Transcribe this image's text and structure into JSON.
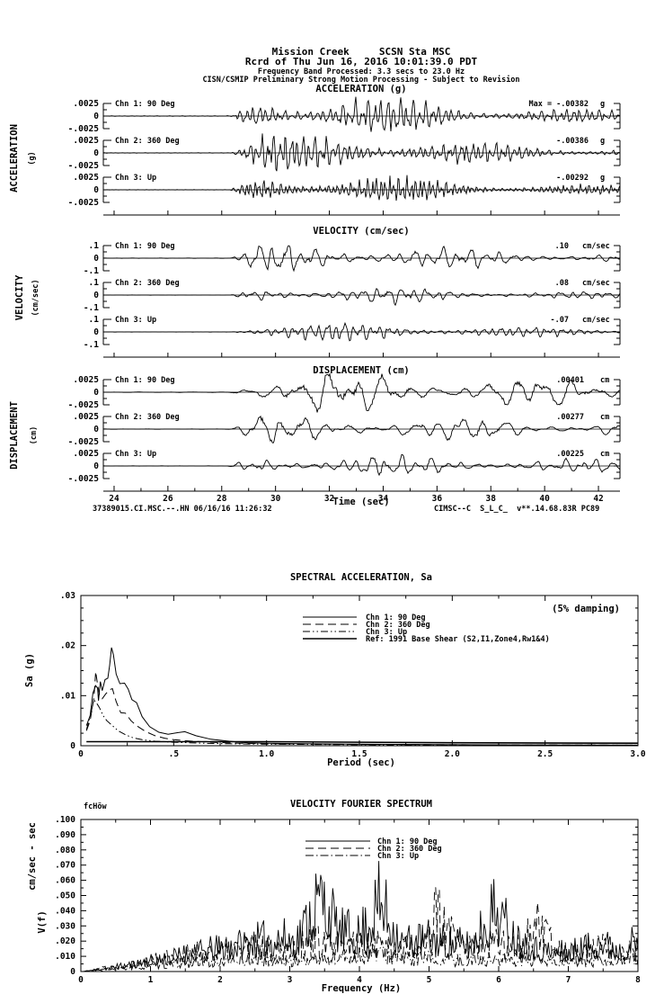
{
  "header": {
    "line1": "Mission Creek     SCSN Sta MSC",
    "line2": "Rcrd of Thu Jun 16, 2016 10:01:39.0 PDT",
    "line3": "Frequency Band Processed: 3.3 secs to 23.0 Hz",
    "line4": "CISN/CSMIP Preliminary Strong Motion Processing - Subject to Revision"
  },
  "waveform_section": {
    "time_axis": {
      "label": "Time (sec)",
      "tick_labels": [
        "24",
        "26",
        "28",
        "30",
        "32",
        "34",
        "36",
        "38",
        "40",
        "42"
      ],
      "tick_values": [
        24,
        26,
        28,
        30,
        32,
        34,
        36,
        38,
        40,
        42
      ],
      "range_sec": [
        23.6,
        42.8
      ]
    },
    "footer_left": "37389015.CI.MSC.--.HN 06/16/16 11:26:32",
    "footer_right": "CIMSC--C  S_L_C_  v**.14.68.83R PC89"
  },
  "chart_data": [
    {
      "type": "line",
      "id": "acceleration",
      "title": "ACCELERATION (g)",
      "side_label": "ACCELERATION",
      "side_unit": "(g)",
      "y_tick_labels": [
        ".0025",
        "0",
        "-.0025"
      ],
      "y_tick_value": 0.0025,
      "event_onset_sec": 28.3,
      "decay": 0.14,
      "channels": [
        {
          "label": "Chn 1: 90 Deg",
          "peak_text": "Max =  -.00382",
          "unit": "g",
          "peak_value": -0.00382,
          "dominant_freq_hz": 4.2,
          "seed": 101
        },
        {
          "label": "Chn 2: 360 Deg",
          "peak_text": "-.00386",
          "unit": "g",
          "peak_value": -0.00386,
          "dominant_freq_hz": 4.6,
          "seed": 102
        },
        {
          "label": "Chn 3: Up",
          "peak_text": "-.00292",
          "unit": "g",
          "peak_value": -0.00292,
          "dominant_freq_hz": 6.2,
          "seed": 103
        }
      ]
    },
    {
      "type": "line",
      "id": "velocity",
      "title": "VELOCITY (cm/sec)",
      "side_label": "VELOCITY",
      "side_unit": "(cm/sec)",
      "y_tick_labels": [
        ".1",
        "0",
        "-.1"
      ],
      "y_tick_value": 0.1,
      "event_onset_sec": 28.3,
      "decay": 0.11,
      "channels": [
        {
          "label": "Chn 1: 90 Deg",
          "peak_text": ".10",
          "unit": "cm/sec",
          "peak_value": 0.1,
          "dominant_freq_hz": 1.9,
          "seed": 201
        },
        {
          "label": "Chn 2: 360 Deg",
          "peak_text": ".08",
          "unit": "cm/sec",
          "peak_value": 0.08,
          "dominant_freq_hz": 2.2,
          "seed": 202
        },
        {
          "label": "Chn 3: Up",
          "peak_text": "-.07",
          "unit": "cm/sec",
          "peak_value": -0.07,
          "dominant_freq_hz": 3.1,
          "seed": 203
        }
      ]
    },
    {
      "type": "line",
      "id": "displacement",
      "title": "DISPLACEMENT (cm)",
      "side_label": "DISPLACEMENT",
      "side_unit": "(cm)",
      "y_tick_labels": [
        ".0025",
        "0",
        "-.0025"
      ],
      "y_tick_value": 0.0025,
      "event_onset_sec": 28.2,
      "decay": 0.055,
      "channels": [
        {
          "label": "Chn 1: 90 Deg",
          "peak_text": ".00401",
          "unit": "cm",
          "peak_value": 0.00401,
          "dominant_freq_hz": 1.0,
          "seed": 301
        },
        {
          "label": "Chn 2: 360 Deg",
          "peak_text": ".00277",
          "unit": "cm",
          "peak_value": 0.00277,
          "dominant_freq_hz": 1.2,
          "seed": 302
        },
        {
          "label": "Chn 3: Up",
          "peak_text": ".00225",
          "unit": "cm",
          "peak_value": 0.00225,
          "dominant_freq_hz": 1.8,
          "seed": 303
        }
      ]
    },
    {
      "type": "line",
      "id": "spectral_acceleration",
      "title": "SPECTRAL ACCELERATION, Sa",
      "note": "(5% damping)",
      "xlabel": "Period (sec)",
      "ylabel": "Sa (g)",
      "xlim": [
        0,
        3.0
      ],
      "ylim": [
        0,
        0.03
      ],
      "x_tick_labels": [
        "0",
        ".5",
        "1.0",
        "1.5",
        "2.0",
        "2.5",
        "3.0"
      ],
      "y_tick_labels": [
        "0",
        ".01",
        ".02",
        ".03"
      ],
      "legend_position": "top-center",
      "grid": false,
      "series": [
        {
          "name": "Chn 1: 90 Deg",
          "dash": "solid",
          "points": [
            [
              0.03,
              0.004
            ],
            [
              0.05,
              0.006
            ],
            [
              0.065,
              0.0105
            ],
            [
              0.08,
              0.012
            ],
            [
              0.09,
              0.0115
            ],
            [
              0.095,
              0.009
            ],
            [
              0.105,
              0.0128
            ],
            [
              0.115,
              0.011
            ],
            [
              0.13,
              0.0132
            ],
            [
              0.145,
              0.0135
            ],
            [
              0.155,
              0.016
            ],
            [
              0.165,
              0.0196
            ],
            [
              0.175,
              0.0182
            ],
            [
              0.19,
              0.0143
            ],
            [
              0.21,
              0.0124
            ],
            [
              0.235,
              0.0125
            ],
            [
              0.255,
              0.0113
            ],
            [
              0.275,
              0.0092
            ],
            [
              0.3,
              0.0086
            ],
            [
              0.33,
              0.0058
            ],
            [
              0.37,
              0.0038
            ],
            [
              0.42,
              0.0027
            ],
            [
              0.47,
              0.0023
            ],
            [
              0.52,
              0.0026
            ],
            [
              0.56,
              0.0028
            ],
            [
              0.62,
              0.002
            ],
            [
              0.7,
              0.0013
            ],
            [
              0.8,
              0.0009
            ],
            [
              0.9,
              0.0006
            ],
            [
              1.0,
              0.0005
            ],
            [
              1.2,
              0.0004
            ],
            [
              1.5,
              0.0003
            ],
            [
              2.0,
              0.0002
            ],
            [
              2.5,
              0.00015
            ],
            [
              3.0,
              0.0001
            ]
          ]
        },
        {
          "name": "Chn 2: 360 Deg",
          "dash": "long-dash",
          "points": [
            [
              0.03,
              0.003
            ],
            [
              0.05,
              0.005
            ],
            [
              0.07,
              0.0095
            ],
            [
              0.08,
              0.0148
            ],
            [
              0.09,
              0.0122
            ],
            [
              0.1,
              0.0102
            ],
            [
              0.115,
              0.0094
            ],
            [
              0.135,
              0.0104
            ],
            [
              0.155,
              0.0112
            ],
            [
              0.17,
              0.0114
            ],
            [
              0.19,
              0.0088
            ],
            [
              0.215,
              0.0066
            ],
            [
              0.24,
              0.0065
            ],
            [
              0.27,
              0.005
            ],
            [
              0.3,
              0.004
            ],
            [
              0.35,
              0.0028
            ],
            [
              0.4,
              0.002
            ],
            [
              0.45,
              0.0015
            ],
            [
              0.5,
              0.0012
            ],
            [
              0.6,
              0.0009
            ],
            [
              0.7,
              0.0007
            ],
            [
              0.85,
              0.0005
            ],
            [
              1.0,
              0.0004
            ],
            [
              1.5,
              0.00025
            ],
            [
              2.0,
              0.0002
            ],
            [
              3.0,
              0.0001
            ]
          ]
        },
        {
          "name": "Chn 3: Up",
          "dash": "dash-dot-dot",
          "points": [
            [
              0.03,
              0.0032
            ],
            [
              0.05,
              0.0058
            ],
            [
              0.07,
              0.0092
            ],
            [
              0.085,
              0.0085
            ],
            [
              0.1,
              0.0076
            ],
            [
              0.12,
              0.006
            ],
            [
              0.14,
              0.005
            ],
            [
              0.17,
              0.004
            ],
            [
              0.2,
              0.003
            ],
            [
              0.24,
              0.0022
            ],
            [
              0.28,
              0.0016
            ],
            [
              0.33,
              0.0012
            ],
            [
              0.4,
              0.0009
            ],
            [
              0.5,
              0.0007
            ],
            [
              0.65,
              0.0005
            ],
            [
              0.8,
              0.0004
            ],
            [
              1.0,
              0.0003
            ],
            [
              1.5,
              0.0002
            ],
            [
              2.0,
              0.00015
            ],
            [
              3.0,
              0.0001
            ]
          ]
        },
        {
          "name": "Ref: 1991 Base Shear (S2,I1,Zone4,Rw1&4)",
          "dash": "solid-thick",
          "points": [
            [
              0.03,
              0.0008
            ],
            [
              1.0,
              0.0008
            ],
            [
              2.0,
              0.0006
            ],
            [
              3.0,
              0.0005
            ]
          ]
        }
      ]
    },
    {
      "type": "line",
      "id": "velocity_fourier_spectrum",
      "title": "VELOCITY FOURIER SPECTRUM",
      "corner_note": "fcHöw",
      "xlabel": "Frequency (Hz)",
      "ylabel_line1": "V(f)",
      "ylabel_line2": "cm/sec - sec",
      "xlim": [
        0,
        8
      ],
      "ylim": [
        0,
        0.1
      ],
      "x_tick_labels": [
        "0",
        "1",
        "2",
        "3",
        "4",
        "5",
        "6",
        "7",
        "8"
      ],
      "y_tick_labels": [
        "0",
        ".010",
        ".020",
        ".030",
        ".040",
        ".050",
        ".060",
        ".070",
        ".080",
        ".090",
        ".100"
      ],
      "legend_position": "top-center",
      "grid": false,
      "series": [
        {
          "name": "Chn 1: 90 Deg",
          "dash": "solid",
          "seed": 11,
          "envelope": [
            [
              0,
              0.001
            ],
            [
              0.5,
              0.004
            ],
            [
              1.0,
              0.01
            ],
            [
              1.5,
              0.016
            ],
            [
              2.0,
              0.022
            ],
            [
              2.5,
              0.028
            ],
            [
              2.8,
              0.032
            ],
            [
              3.1,
              0.03
            ],
            [
              3.45,
              0.072
            ],
            [
              3.7,
              0.038
            ],
            [
              4.0,
              0.034
            ],
            [
              4.3,
              0.066
            ],
            [
              4.6,
              0.028
            ],
            [
              5.0,
              0.03
            ],
            [
              5.3,
              0.027
            ],
            [
              5.6,
              0.025
            ],
            [
              5.95,
              0.06
            ],
            [
              6.2,
              0.034
            ],
            [
              6.5,
              0.022
            ],
            [
              6.8,
              0.018
            ],
            [
              7.1,
              0.02
            ],
            [
              7.4,
              0.027
            ],
            [
              7.7,
              0.022
            ],
            [
              8.0,
              0.028
            ]
          ]
        },
        {
          "name": "Chn 2: 360 Deg",
          "dash": "long-dash",
          "seed": 22,
          "envelope": [
            [
              0,
              0.001
            ],
            [
              0.5,
              0.005
            ],
            [
              1.0,
              0.011
            ],
            [
              1.5,
              0.017
            ],
            [
              2.0,
              0.019
            ],
            [
              2.4,
              0.026
            ],
            [
              2.7,
              0.021
            ],
            [
              3.0,
              0.024
            ],
            [
              3.3,
              0.028
            ],
            [
              3.6,
              0.023
            ],
            [
              3.9,
              0.025
            ],
            [
              4.2,
              0.029
            ],
            [
              4.5,
              0.021
            ],
            [
              4.8,
              0.023
            ],
            [
              5.1,
              0.052
            ],
            [
              5.4,
              0.028
            ],
            [
              5.7,
              0.021
            ],
            [
              6.0,
              0.028
            ],
            [
              6.3,
              0.024
            ],
            [
              6.55,
              0.04
            ],
            [
              6.8,
              0.022
            ],
            [
              7.2,
              0.017
            ],
            [
              7.5,
              0.024
            ],
            [
              8.0,
              0.02
            ]
          ]
        },
        {
          "name": "Chn 3: Up",
          "dash": "dash-dot",
          "seed": 33,
          "envelope": [
            [
              0,
              0.0005
            ],
            [
              0.5,
              0.002
            ],
            [
              1.0,
              0.005
            ],
            [
              1.5,
              0.008
            ],
            [
              2.0,
              0.01
            ],
            [
              2.5,
              0.012
            ],
            [
              3.0,
              0.01
            ],
            [
              3.5,
              0.012
            ],
            [
              4.0,
              0.015
            ],
            [
              4.3,
              0.019
            ],
            [
              4.6,
              0.012
            ],
            [
              5.0,
              0.012
            ],
            [
              5.5,
              0.01
            ],
            [
              6.0,
              0.012
            ],
            [
              6.5,
              0.01
            ],
            [
              7.0,
              0.008
            ],
            [
              7.5,
              0.01
            ],
            [
              8.0,
              0.012
            ]
          ]
        }
      ]
    }
  ]
}
